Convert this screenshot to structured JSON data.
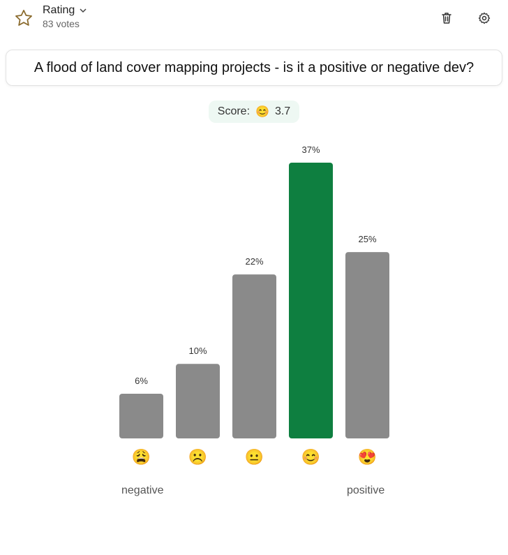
{
  "header": {
    "title": "Rating",
    "votes": "83 votes"
  },
  "question": "A flood of land cover mapping projects - is it a positive or negative dev?",
  "score": {
    "label": "Score:",
    "emoji": "😊",
    "value": "3.7"
  },
  "scale": {
    "negative": "negative",
    "positive": "positive"
  },
  "colors": {
    "bar": "#8a8a8a",
    "highlight": "#0e7f40"
  },
  "chart_data": {
    "type": "bar",
    "categories": [
      "😩",
      "☹️",
      "😐",
      "😊",
      "😍"
    ],
    "values": [
      6,
      10,
      22,
      37,
      25
    ],
    "data_labels": [
      "6%",
      "10%",
      "22%",
      "37%",
      "25%"
    ],
    "highlight_index": 3,
    "ylim": [
      0,
      37
    ]
  }
}
